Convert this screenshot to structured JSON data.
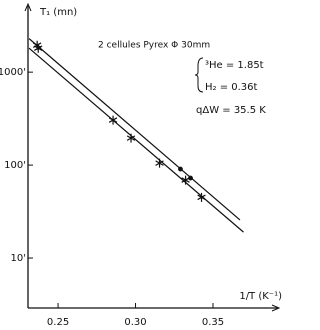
{
  "chart_data": {
    "type": "scatter",
    "yscale": "log",
    "ylabel": "T₁ (mn)",
    "xlabel": "1/T (K⁻¹)",
    "annotations": [
      "2 cellules  Pyrex Φ 30mm",
      "³He = 1.85t",
      "H₂ = 0.36t",
      "qΔW = 35.5 K"
    ],
    "xlim": [
      0.2306,
      0.3868
    ],
    "ylim": [
      2.9,
      4900
    ],
    "xticks": [
      0.25,
      {
        "value": 0.3,
        "label": "0.30"
      },
      0.35
    ],
    "yticks": [
      {
        "value": 10,
        "label": "10'"
      },
      {
        "value": 100,
        "label": "100'"
      },
      {
        "value": 1000,
        "label": "1000'"
      }
    ],
    "color": "#111111",
    "series": [
      {
        "marker": "asterisk",
        "x": [
          0.2365,
          0.2372,
          0.2855,
          0.2971,
          0.3155,
          0.3323,
          0.3426
        ],
        "values": [
          1950,
          1810,
          305,
          195,
          105,
          69,
          45
        ]
      },
      {
        "marker": "dot",
        "x": [
          0.329,
          0.3355
        ],
        "values": [
          90.6,
          72.5
        ]
      },
      {
        "marker": "line",
        "x": [
          0.2313,
          0.3674
        ],
        "values": [
          2295,
          25.7
        ]
      },
      {
        "marker": "line",
        "x": [
          0.2313,
          0.3697
        ],
        "values": [
          1810,
          19
        ]
      }
    ]
  }
}
